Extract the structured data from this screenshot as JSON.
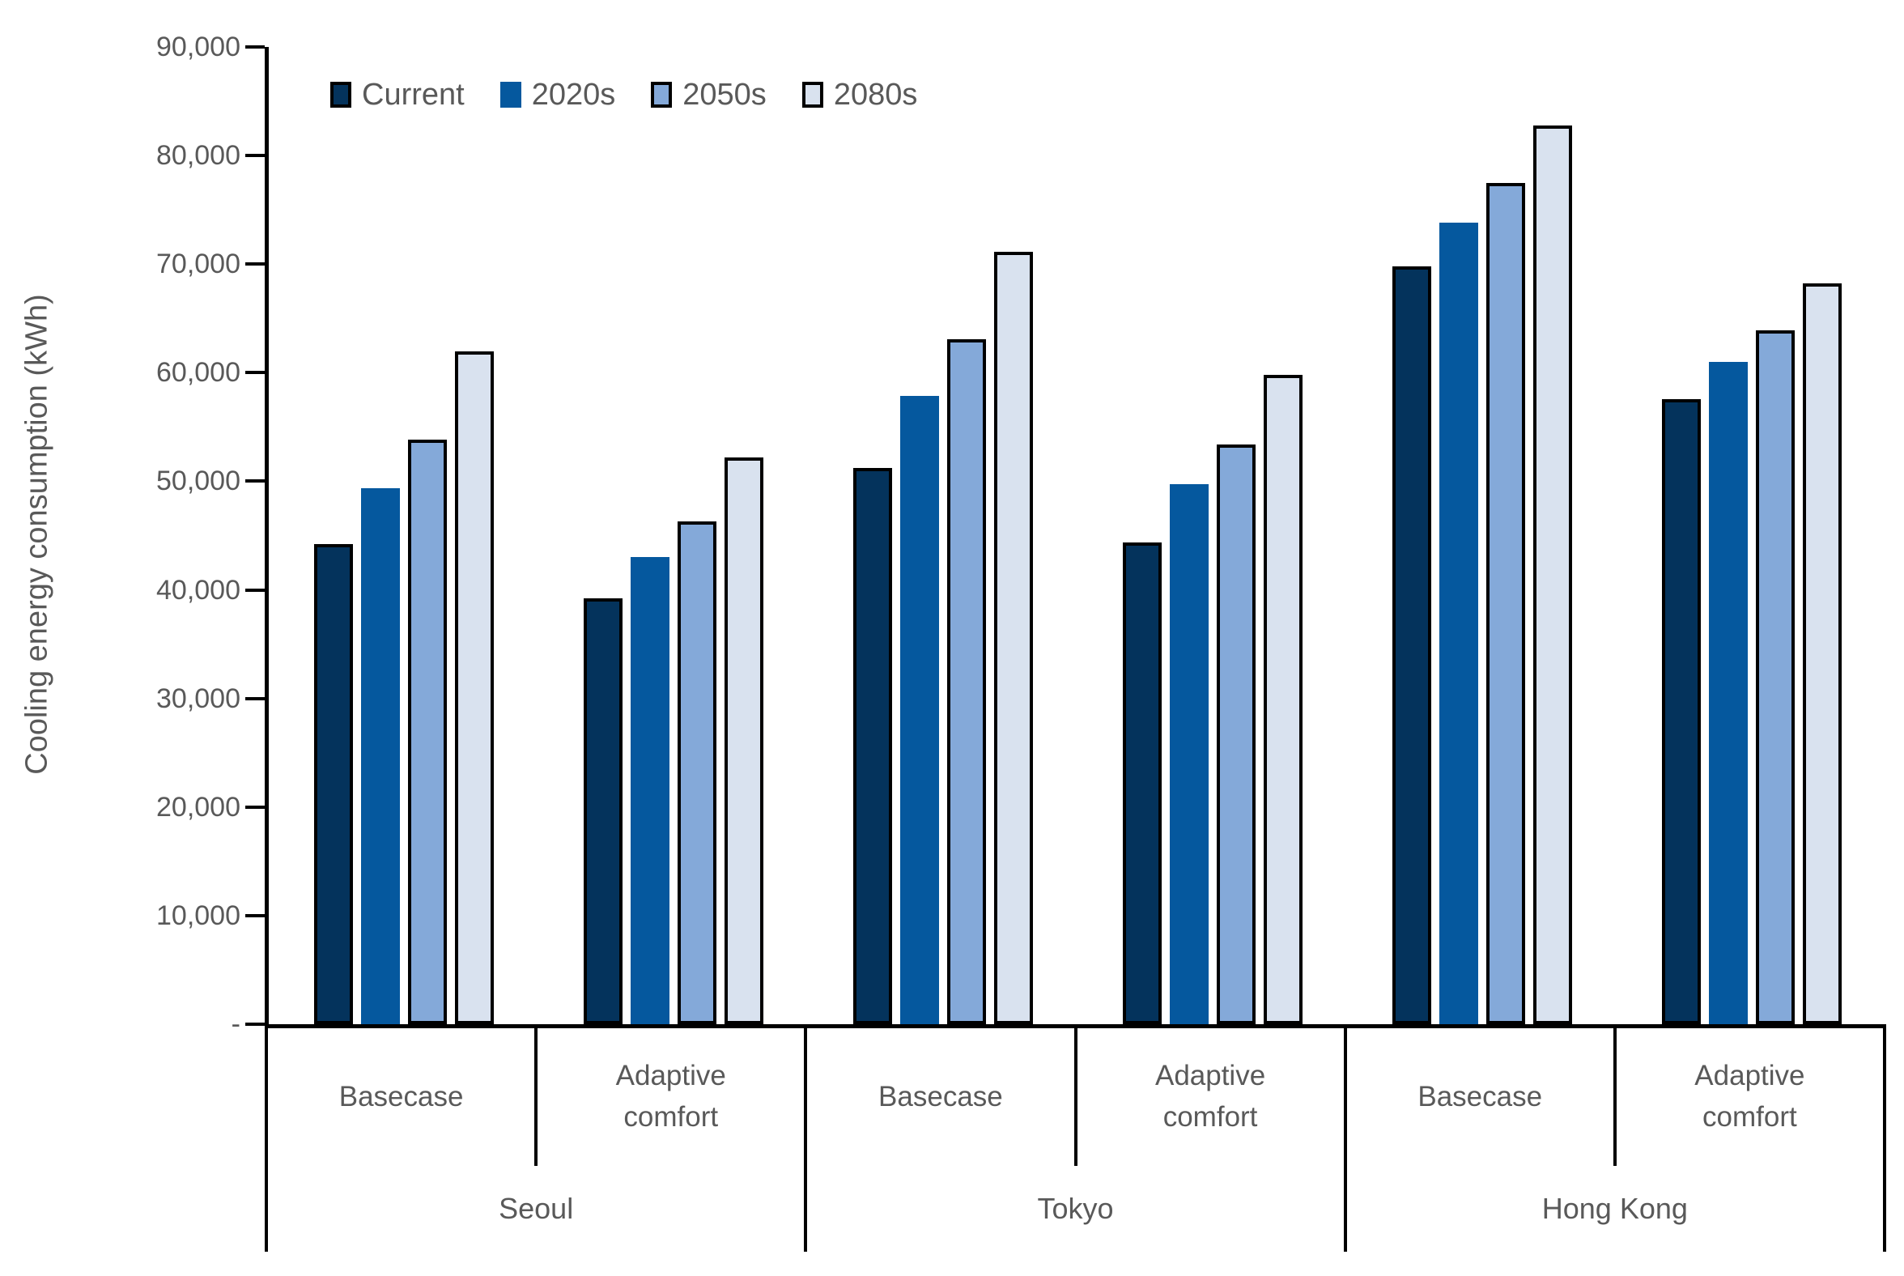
{
  "chart_data": {
    "type": "bar",
    "title": "",
    "xlabel": "",
    "ylabel": "Cooling energy consumption (kWh)",
    "ylim": [
      0,
      90000
    ],
    "grid": false,
    "legend_position": "top-left-inside",
    "ytick_labels": [
      "90,000",
      "80,000",
      "70,000",
      "60,000",
      "50,000",
      "40,000",
      "30,000",
      "20,000",
      "10,000",
      "-"
    ],
    "categories": [
      "Basecase",
      "Adaptive comfort",
      "Basecase",
      "Adaptive comfort",
      "Basecase",
      "Adaptive comfort"
    ],
    "city_groups": [
      {
        "name": "Seoul",
        "span": 2
      },
      {
        "name": "Tokyo",
        "span": 2
      },
      {
        "name": "Hong Kong",
        "span": 2
      }
    ],
    "series": [
      {
        "name": "Current",
        "color": "#04335C",
        "outlined": true,
        "values": [
          44200,
          39200,
          51200,
          44400,
          69800,
          57600
        ]
      },
      {
        "name": "2020s",
        "color": "#05589E",
        "outlined": false,
        "values": [
          49400,
          43000,
          57900,
          49700,
          73800,
          61000
        ]
      },
      {
        "name": "2050s",
        "color": "#84A9D9",
        "outlined": true,
        "values": [
          53800,
          46300,
          63100,
          53400,
          77500,
          63900
        ]
      },
      {
        "name": "2080s",
        "color": "#D9E2EF",
        "outlined": true,
        "values": [
          62000,
          52200,
          71100,
          59800,
          82800,
          68200
        ]
      }
    ],
    "styles": {
      "axis_color": "#000000",
      "text_color": "#595959",
      "outline_color": "#000000"
    }
  }
}
